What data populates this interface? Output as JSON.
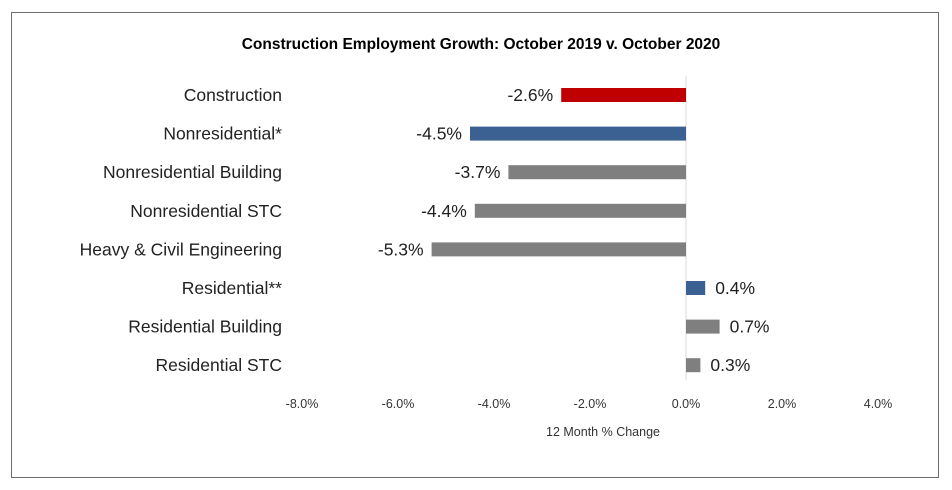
{
  "chart_data": {
    "type": "bar",
    "orientation": "horizontal",
    "title": "Construction  Employment  Growth: October 2019 v. October 2020",
    "xlabel": "12 Month % Change",
    "ylabel": "",
    "xlim": [
      -8.0,
      4.0
    ],
    "x_ticks": [
      -8.0,
      -6.0,
      -4.0,
      -2.0,
      0.0,
      2.0,
      4.0
    ],
    "x_tick_labels": [
      "-8.0%",
      "-6.0%",
      "-4.0%",
      "-2.0%",
      "0.0%",
      "2.0%",
      "4.0%"
    ],
    "categories": [
      "Construction",
      "Nonresidential*",
      "Nonresidential Building",
      "Nonresidential STC",
      "Heavy & Civil Engineering",
      "Residential**",
      "Residential Building",
      "Residential STC"
    ],
    "values": [
      -2.6,
      -4.5,
      -3.7,
      -4.4,
      -5.3,
      0.4,
      0.7,
      0.3
    ],
    "data_labels": [
      "-2.6%",
      "-4.5%",
      "-3.7%",
      "-4.4%",
      "-5.3%",
      "0.4%",
      "0.7%",
      "0.3%"
    ],
    "bar_colors": [
      "#c00000",
      "#3b6193",
      "#7f7f7f",
      "#7f7f7f",
      "#7f7f7f",
      "#3b6193",
      "#7f7f7f",
      "#7f7f7f"
    ],
    "grid": false,
    "legend": "none"
  },
  "colors": {
    "border": "#6d6d6d",
    "zero_line": "#d9d9d9"
  }
}
